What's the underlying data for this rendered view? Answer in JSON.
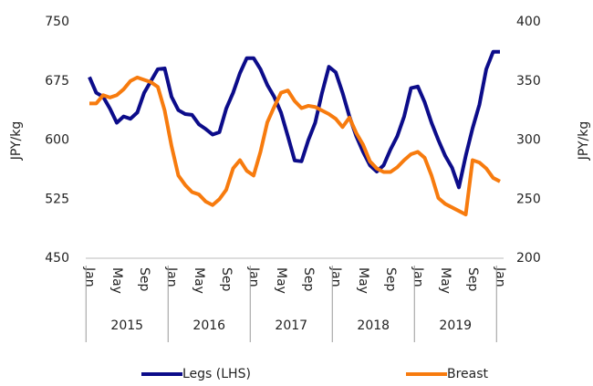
{
  "chart_data": {
    "type": "line",
    "categories": [
      "Jan",
      null,
      null,
      null,
      "May",
      null,
      null,
      null,
      "Sep",
      null,
      null,
      null,
      "Jan",
      null,
      null,
      null,
      "May",
      null,
      null,
      null,
      "Sep",
      null,
      null,
      null,
      "Jan",
      null,
      null,
      null,
      "May",
      null,
      null,
      null,
      "Sep",
      null,
      null,
      null,
      "Jan",
      null,
      null,
      null,
      "May",
      null,
      null,
      null,
      "Sep",
      null,
      null,
      null,
      "Jan",
      null,
      null,
      null,
      "May",
      null,
      null,
      null,
      "Sep",
      null,
      null,
      null,
      "Jan"
    ],
    "x_groups": [
      "2015",
      "2016",
      "2017",
      "2018",
      "2019"
    ],
    "ylabel": "JPY/kg",
    "y2label": "JPY/kg",
    "ylim": [
      450,
      750
    ],
    "yticks": [
      450,
      525,
      600,
      675,
      750
    ],
    "y2lim": [
      200,
      400
    ],
    "y2ticks": [
      200,
      250,
      300,
      350,
      400
    ],
    "legend": "bottom",
    "series": [
      {
        "name": "Legs (LHS)",
        "color": "#0c0c8a",
        "axis": "y",
        "values": [
          680,
          660,
          655,
          640,
          622,
          630,
          627,
          635,
          660,
          675,
          690,
          691,
          655,
          638,
          633,
          632,
          620,
          614,
          607,
          610,
          640,
          660,
          685,
          704,
          704,
          690,
          670,
          655,
          635,
          605,
          574,
          573,
          600,
          622,
          660,
          693,
          686,
          660,
          630,
          605,
          585,
          568,
          560,
          568,
          588,
          605,
          630,
          666,
          668,
          648,
          622,
          600,
          580,
          565,
          540,
          580,
          615,
          645,
          690,
          712,
          712
        ]
      },
      {
        "name": "Breast",
        "color": "#f77b0e",
        "axis": "y2",
        "values": [
          331,
          331,
          338,
          336,
          338,
          343,
          350,
          353,
          351,
          349,
          345,
          325,
          295,
          270,
          262,
          256,
          254,
          248,
          245,
          250,
          258,
          276,
          283,
          274,
          270,
          290,
          315,
          328,
          340,
          342,
          333,
          327,
          329,
          328,
          325,
          322,
          318,
          311,
          319,
          306,
          296,
          282,
          276,
          273,
          273,
          277,
          283,
          288,
          290,
          285,
          270,
          251,
          246,
          243,
          240,
          237,
          283,
          281,
          276,
          268,
          265
        ]
      }
    ]
  }
}
